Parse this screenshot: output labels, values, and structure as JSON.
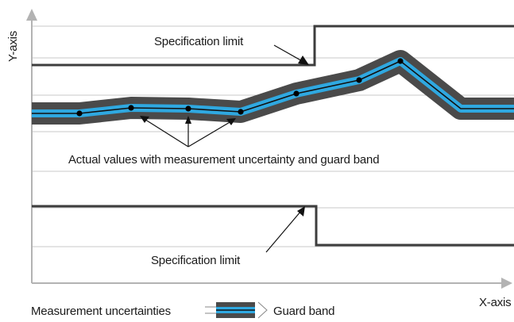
{
  "axes": {
    "y_label": "Y-axis",
    "x_label": "X-axis"
  },
  "labels": {
    "spec_upper": "Specification limit",
    "spec_lower": "Specification limit",
    "actual_values": "Actual values with measurement uncertainty and guard band"
  },
  "legend": {
    "uncertainty_label": "Measurement uncertainties",
    "guard_band_label": "Guard band"
  },
  "colors": {
    "axis": "#b3b3b3",
    "grid": "#c8c8c8",
    "spec_limit": "#3d3d3d",
    "guard_band": "#4a4a4a",
    "uncertainty": "#2fa8e0",
    "actual_line": "#111111",
    "points": "#000000"
  }
}
